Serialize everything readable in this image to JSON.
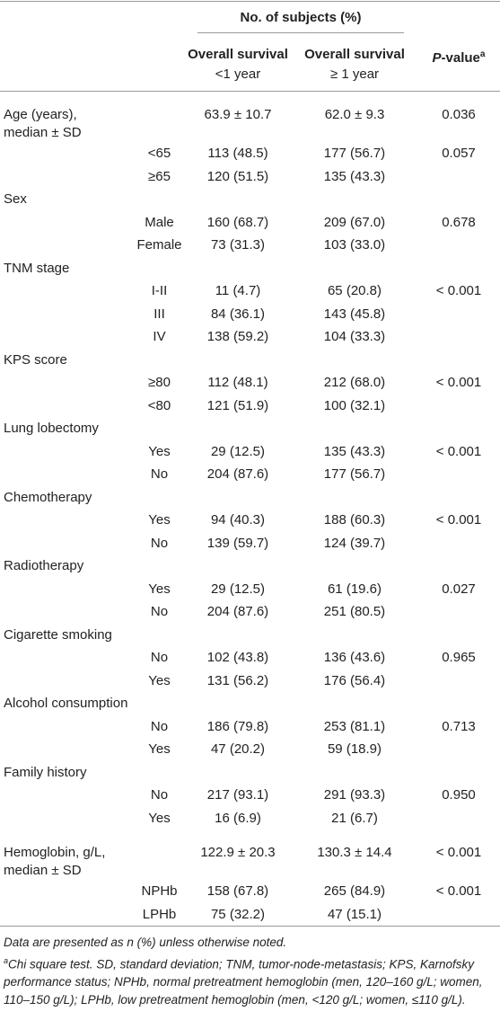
{
  "table": {
    "header": {
      "group": "No. of subjects (%)",
      "col1": [
        "Overall survival",
        "<1 year"
      ],
      "col2": [
        "Overall survival",
        "≥ 1 year"
      ],
      "p": {
        "italic": "P",
        "rest": "-value",
        "sup": "a"
      }
    },
    "rows": [
      {
        "label": [
          "Age (years),",
          "median ± SD"
        ],
        "c1": "63.9 ± 10.7",
        "c2": "62.0 ± 9.3",
        "p": "0.036"
      },
      {
        "sub": "<65",
        "c1": "113 (48.5)",
        "c2": "177 (56.7)",
        "p": "0.057"
      },
      {
        "sub": "≥65",
        "c1": "120 (51.5)",
        "c2": "135 (43.3)"
      },
      {
        "label": [
          "Sex"
        ]
      },
      {
        "sub": "Male",
        "c1": "160 (68.7)",
        "c2": "209 (67.0)",
        "p": "0.678"
      },
      {
        "sub": "Female",
        "c1": "73 (31.3)",
        "c2": "103 (33.0)"
      },
      {
        "label": [
          "TNM stage"
        ]
      },
      {
        "sub": "I-II",
        "c1": "11 (4.7)",
        "c2": "65 (20.8)",
        "p": "< 0.001"
      },
      {
        "sub": "III",
        "c1": "84 (36.1)",
        "c2": "143 (45.8)"
      },
      {
        "sub": "IV",
        "c1": "138 (59.2)",
        "c2": "104 (33.3)"
      },
      {
        "label": [
          "KPS score"
        ]
      },
      {
        "sub": "≥80",
        "c1": "112 (48.1)",
        "c2": "212 (68.0)",
        "p": "< 0.001"
      },
      {
        "sub": "<80",
        "c1": "121 (51.9)",
        "c2": "100 (32.1)"
      },
      {
        "label": [
          "Lung lobectomy"
        ]
      },
      {
        "sub": "Yes",
        "c1": "29 (12.5)",
        "c2": "135 (43.3)",
        "p": "< 0.001"
      },
      {
        "sub": "No",
        "c1": "204 (87.6)",
        "c2": "177 (56.7)"
      },
      {
        "label": [
          "Chemotherapy"
        ]
      },
      {
        "sub": "Yes",
        "c1": "94 (40.3)",
        "c2": "188 (60.3)",
        "p": "< 0.001"
      },
      {
        "sub": "No",
        "c1": "139 (59.7)",
        "c2": "124 (39.7)"
      },
      {
        "label": [
          "Radiotherapy"
        ]
      },
      {
        "sub": "Yes",
        "c1": "29 (12.5)",
        "c2": "61 (19.6)",
        "p": "0.027"
      },
      {
        "sub": "No",
        "c1": "204 (87.6)",
        "c2": "251 (80.5)"
      },
      {
        "label": [
          "Cigarette smoking"
        ]
      },
      {
        "sub": "No",
        "c1": "102 (43.8)",
        "c2": "136 (43.6)",
        "p": "0.965"
      },
      {
        "sub": "Yes",
        "c1": "131 (56.2)",
        "c2": "176 (56.4)"
      },
      {
        "label": [
          "Alcohol consumption"
        ]
      },
      {
        "sub": "No",
        "c1": "186 (79.8)",
        "c2": "253 (81.1)",
        "p": "0.713"
      },
      {
        "sub": "Yes",
        "c1": "47 (20.2)",
        "c2": "59 (18.9)"
      },
      {
        "label": [
          "Family history"
        ]
      },
      {
        "sub": "No",
        "c1": "217 (93.1)",
        "c2": "291 (93.3)",
        "p": "0.950"
      },
      {
        "sub": "Yes",
        "c1": "16 (6.9)",
        "c2": "21 (6.7)"
      },
      {
        "label": [
          "Hemoglobin, g/L,",
          "median ± SD"
        ],
        "c1": "122.9 ± 20.3",
        "c2": "130.3 ± 14.4",
        "p": "< 0.001"
      },
      {
        "sub": "NPHb",
        "c1": "158 (67.8)",
        "c2": "265 (84.9)",
        "p": "< 0.001"
      },
      {
        "sub": "LPHb",
        "c1": "75 (32.2)",
        "c2": "47 (15.1)"
      }
    ]
  },
  "notes": {
    "line1": "Data are presented as n (%) unless otherwise noted.",
    "sup": "a",
    "line2": "Chi square test. SD, standard deviation; TNM, tumor-node-metastasis; KPS, Karnofsky performance status; NPHb, normal pretreatment hemoglobin (men, 120–160 g/L; women, 110–150 g/L); LPHb, low pretreatment hemoglobin (men, <120 g/L; women, ≤110 g/L)."
  }
}
